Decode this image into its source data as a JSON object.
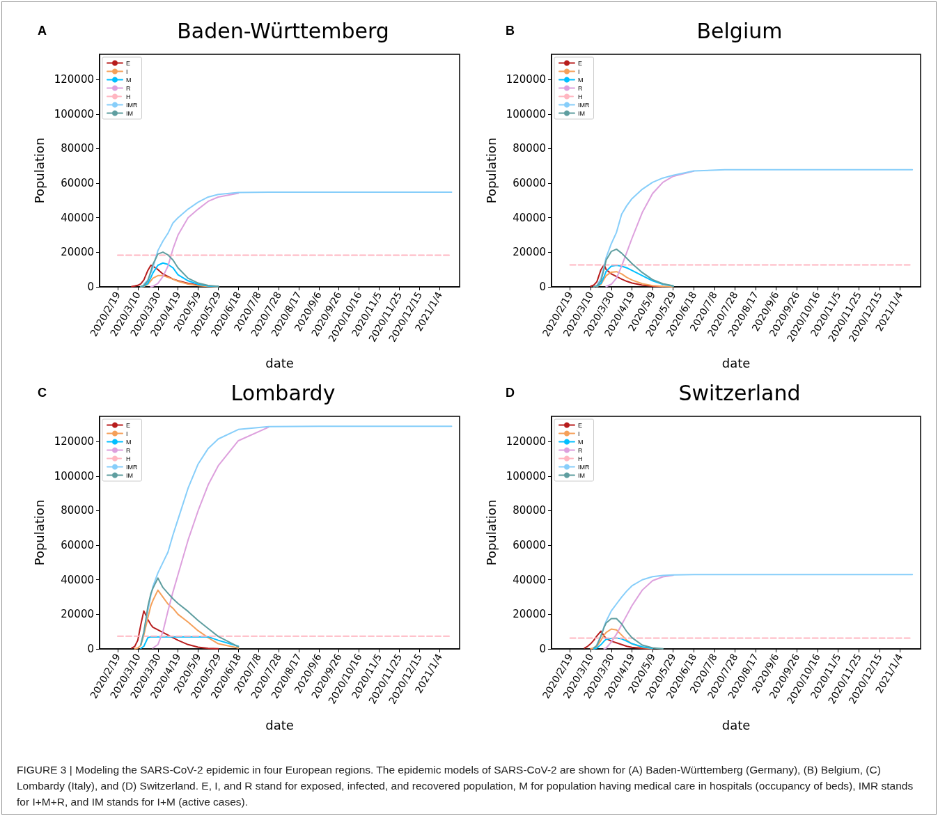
{
  "chart_data": [
    {
      "type": "line",
      "title": "Baden-Württemberg",
      "xlabel": "date",
      "ylabel": "Population",
      "annotations": [
        "A",
        "FIGURE 3 | Modeling the SARS-CoV-2 epidemic in four European regions. The epidemic models of SARS-CoV-2 are shown for (A) Baden-Württemberg (Germany), (B) Belgium, (C) Lombardy (Italy), and (D) Switzerland. E, I, and R stand for exposed, infected, and recovered population, M for population having medical care in hospitals (occupancy of beds), IMR stands for I+M+R, and IM stands for I+M (active cases)."
      ],
      "x": [
        "2020-02-19",
        "2020-02-24",
        "2020-02-29",
        "2020-03-04",
        "2020-03-07",
        "2020-03-10",
        "2020-03-13",
        "2020-03-16",
        "2020-03-20",
        "2020-03-23",
        "2020-03-25",
        "2020-03-30",
        "2020-04-04",
        "2020-04-09",
        "2020-04-14",
        "2020-04-19",
        "2020-04-29",
        "2020-05-09",
        "2020-05-19",
        "2020-05-29",
        "2020-06-18",
        "2020-07-18",
        "2020-09-06",
        "2020-10-26",
        "2020-12-15",
        "2021-01-16"
      ],
      "xlim": [
        "2020-02-01",
        "2021-01-24"
      ],
      "xticks": [
        {
          "value": "2020-02-19",
          "label": "2020/2/19"
        },
        {
          "value": "2020-03-10",
          "label": "2020/3/10"
        },
        {
          "value": "2020-03-30",
          "label": "2020/3/30"
        },
        {
          "value": "2020-04-19",
          "label": "2020/4/19"
        },
        {
          "value": "2020-05-09",
          "label": "2020/5/9"
        },
        {
          "value": "2020-05-29",
          "label": "2020/5/29"
        },
        {
          "value": "2020-06-18",
          "label": "2020/6/18"
        },
        {
          "value": "2020-07-08",
          "label": "2020/7/8"
        },
        {
          "value": "2020-07-28",
          "label": "2020/7/28"
        },
        {
          "value": "2020-08-17",
          "label": "2020/8/17"
        },
        {
          "value": "2020-09-06",
          "label": "2020/9/6"
        },
        {
          "value": "2020-09-26",
          "label": "2020/9/26"
        },
        {
          "value": "2020-10-16",
          "label": "2020/10/16"
        },
        {
          "value": "2020-11-05",
          "label": "2020/11/5"
        },
        {
          "value": "2020-11-25",
          "label": "2020/11/25"
        },
        {
          "value": "2020-12-15",
          "label": "2020/12/15"
        },
        {
          "value": "2021-01-04",
          "label": "2021/1/4"
        }
      ],
      "ylim": [
        0,
        134600
      ],
      "yticks": [
        0,
        20000,
        40000,
        60000,
        80000,
        100000,
        120000
      ],
      "legend": "top left",
      "marker": "none",
      "line_style": "solid",
      "series": [
        {
          "name": "E",
          "color": "#b71c1c",
          "values": [
            null,
            null,
            null,
            200,
            500,
            900,
            1800,
            4000,
            9500,
            12500,
            12000,
            10000,
            7500,
            6000,
            4500,
            3500,
            2000,
            1000,
            500,
            200,
            null,
            null,
            null,
            null,
            null,
            null
          ]
        },
        {
          "name": "I",
          "color": "#f5a05a",
          "values": [
            null,
            null,
            null,
            null,
            null,
            null,
            100,
            300,
            1500,
            3500,
            5000,
            6500,
            6500,
            5500,
            4500,
            3200,
            1600,
            700,
            300,
            100,
            null,
            null,
            null,
            null,
            null,
            null
          ]
        },
        {
          "name": "M",
          "color": "#00bfff",
          "values": [
            null,
            null,
            null,
            null,
            null,
            null,
            100,
            500,
            2000,
            5400,
            8000,
            12500,
            13800,
            13000,
            11000,
            7000,
            3500,
            1500,
            500,
            200,
            null,
            null,
            null,
            null,
            null,
            null
          ]
        },
        {
          "name": "R",
          "color": "#dda0dd",
          "values": [
            null,
            null,
            null,
            null,
            null,
            null,
            null,
            null,
            null,
            100,
            300,
            2000,
            6000,
            12000,
            22000,
            30000,
            40000,
            45000,
            49500,
            52000,
            54200,
            null,
            null,
            null,
            null,
            null
          ]
        },
        {
          "name": "H",
          "color": "#ffb6c1",
          "line_style": "dashed",
          "values": [
            18300,
            18300,
            18300,
            18300,
            18300,
            18300,
            18300,
            18300,
            18300,
            18300,
            18300,
            18300,
            18300,
            18300,
            18300,
            18300,
            18300,
            18300,
            18300,
            18300,
            18300,
            18300,
            18300,
            18300,
            18300,
            18300
          ]
        },
        {
          "name": "IMR",
          "color": "#87cefa",
          "values": [
            null,
            null,
            null,
            null,
            null,
            null,
            null,
            1500,
            4000,
            8000,
            11000,
            21000,
            26500,
            31000,
            37000,
            40000,
            45000,
            49000,
            52000,
            53500,
            54600,
            54800,
            54800,
            54800,
            54800,
            54800
          ]
        },
        {
          "name": "IM",
          "color": "#5f9ea0",
          "values": [
            null,
            null,
            null,
            null,
            null,
            null,
            200,
            800,
            3500,
            9000,
            13000,
            19000,
            20100,
            18500,
            15500,
            11000,
            5000,
            2200,
            800,
            300,
            null,
            null,
            null,
            null,
            null,
            null
          ]
        }
      ]
    },
    {
      "type": "line",
      "title": "Belgium",
      "xlabel": "date",
      "ylabel": "Population",
      "annotations": [
        "B"
      ],
      "x": [
        "2020-02-19",
        "2020-02-24",
        "2020-02-29",
        "2020-03-04",
        "2020-03-07",
        "2020-03-10",
        "2020-03-13",
        "2020-03-16",
        "2020-03-20",
        "2020-03-23",
        "2020-03-25",
        "2020-03-30",
        "2020-04-04",
        "2020-04-09",
        "2020-04-14",
        "2020-04-19",
        "2020-04-29",
        "2020-05-09",
        "2020-05-19",
        "2020-05-29",
        "2020-06-18",
        "2020-07-18",
        "2020-09-06",
        "2020-10-26",
        "2020-12-15",
        "2021-01-16"
      ],
      "xlim": [
        "2020-02-01",
        "2021-01-24"
      ],
      "xticks": [
        {
          "value": "2020-02-19",
          "label": "2020/2/19"
        },
        {
          "value": "2020-03-10",
          "label": "2020/3/10"
        },
        {
          "value": "2020-03-30",
          "label": "2020/3/30"
        },
        {
          "value": "2020-04-19",
          "label": "2020/4/19"
        },
        {
          "value": "2020-05-09",
          "label": "2020/5/9"
        },
        {
          "value": "2020-05-29",
          "label": "2020/5/29"
        },
        {
          "value": "2020-06-18",
          "label": "2020/6/18"
        },
        {
          "value": "2020-07-08",
          "label": "2020/7/8"
        },
        {
          "value": "2020-07-28",
          "label": "2020/7/28"
        },
        {
          "value": "2020-08-17",
          "label": "2020/8/17"
        },
        {
          "value": "2020-09-06",
          "label": "2020/9/6"
        },
        {
          "value": "2020-09-26",
          "label": "2020/9/26"
        },
        {
          "value": "2020-10-16",
          "label": "2020/10/16"
        },
        {
          "value": "2020-11-05",
          "label": "2020/11/5"
        },
        {
          "value": "2020-11-25",
          "label": "2020/11/25"
        },
        {
          "value": "2020-12-15",
          "label": "2020/12/15"
        },
        {
          "value": "2021-01-04",
          "label": "2021/1/4"
        }
      ],
      "ylim": [
        0,
        134600
      ],
      "yticks": [
        0,
        20000,
        40000,
        60000,
        80000,
        100000,
        120000
      ],
      "legend": "top left",
      "marker": "none",
      "line_style": "solid",
      "series": [
        {
          "name": "E",
          "color": "#b71c1c",
          "values": [
            null,
            null,
            null,
            null,
            null,
            300,
            1000,
            3000,
            10000,
            12800,
            10000,
            7500,
            6000,
            4500,
            3200,
            2200,
            1000,
            400,
            200,
            null,
            null,
            null,
            null,
            null,
            null,
            null
          ]
        },
        {
          "name": "I",
          "color": "#f5a05a",
          "values": [
            null,
            null,
            null,
            null,
            null,
            null,
            null,
            200,
            1500,
            4500,
            6500,
            8500,
            8800,
            7500,
            5500,
            4000,
            1800,
            700,
            300,
            100,
            null,
            null,
            null,
            null,
            null,
            null
          ]
        },
        {
          "name": "M",
          "color": "#00bfff",
          "values": [
            null,
            null,
            null,
            null,
            null,
            null,
            null,
            300,
            2000,
            6000,
            9000,
            12000,
            12500,
            12000,
            11000,
            9500,
            6500,
            3500,
            1500,
            500,
            null,
            null,
            null,
            null,
            null,
            null
          ]
        },
        {
          "name": "R",
          "color": "#dda0dd",
          "values": [
            null,
            null,
            null,
            null,
            null,
            null,
            null,
            null,
            null,
            null,
            200,
            1500,
            5000,
            12000,
            20000,
            28000,
            43000,
            54000,
            60500,
            64000,
            67000,
            null,
            null,
            null,
            null,
            null
          ]
        },
        {
          "name": "H",
          "color": "#ffb6c1",
          "line_style": "dashed",
          "values": [
            12700,
            12700,
            12700,
            12700,
            12700,
            12700,
            12700,
            12700,
            12700,
            12700,
            12700,
            12700,
            12700,
            12700,
            12700,
            12700,
            12700,
            12700,
            12700,
            12700,
            12700,
            12700,
            12700,
            12700,
            12700,
            12700
          ]
        },
        {
          "name": "IMR",
          "color": "#87cefa",
          "values": [
            null,
            null,
            null,
            null,
            null,
            null,
            null,
            700,
            5000,
            12000,
            17000,
            25000,
            31500,
            42000,
            47000,
            51000,
            56500,
            60500,
            63000,
            64600,
            67100,
            67800,
            67800,
            67800,
            67800,
            67800
          ]
        },
        {
          "name": "IM",
          "color": "#5f9ea0",
          "values": [
            null,
            null,
            null,
            null,
            null,
            null,
            100,
            600,
            3500,
            10500,
            15500,
            20500,
            21800,
            19500,
            16500,
            13500,
            8300,
            4200,
            1800,
            600,
            null,
            null,
            null,
            null,
            null,
            null
          ]
        }
      ]
    },
    {
      "type": "line",
      "title": "Lombardy",
      "xlabel": "date",
      "ylabel": "Population",
      "annotations": [
        "C"
      ],
      "x": [
        "2020-02-19",
        "2020-02-24",
        "2020-02-29",
        "2020-03-04",
        "2020-03-07",
        "2020-03-10",
        "2020-03-13",
        "2020-03-16",
        "2020-03-20",
        "2020-03-23",
        "2020-03-25",
        "2020-03-30",
        "2020-04-04",
        "2020-04-09",
        "2020-04-14",
        "2020-04-19",
        "2020-04-29",
        "2020-05-09",
        "2020-05-19",
        "2020-05-29",
        "2020-06-18",
        "2020-07-18",
        "2020-09-06",
        "2020-10-26",
        "2020-12-15",
        "2021-01-16"
      ],
      "xlim": [
        "2020-02-01",
        "2021-01-24"
      ],
      "xticks": [
        {
          "value": "2020-02-19",
          "label": "2020/2/19"
        },
        {
          "value": "2020-03-10",
          "label": "2020/3/10"
        },
        {
          "value": "2020-03-30",
          "label": "2020/3/30"
        },
        {
          "value": "2020-04-19",
          "label": "2020/4/19"
        },
        {
          "value": "2020-05-09",
          "label": "2020/5/9"
        },
        {
          "value": "2020-05-29",
          "label": "2020/5/29"
        },
        {
          "value": "2020-06-18",
          "label": "2020/6/18"
        },
        {
          "value": "2020-07-08",
          "label": "2020/7/8"
        },
        {
          "value": "2020-07-28",
          "label": "2020/7/28"
        },
        {
          "value": "2020-08-17",
          "label": "2020/8/17"
        },
        {
          "value": "2020-09-06",
          "label": "2020/9/6"
        },
        {
          "value": "2020-09-26",
          "label": "2020/9/26"
        },
        {
          "value": "2020-10-16",
          "label": "2020/10/16"
        },
        {
          "value": "2020-11-05",
          "label": "2020/11/5"
        },
        {
          "value": "2020-11-25",
          "label": "2020/11/25"
        },
        {
          "value": "2020-12-15",
          "label": "2020/12/15"
        },
        {
          "value": "2021-01-04",
          "label": "2021/1/4"
        }
      ],
      "ylim": [
        0,
        134600
      ],
      "yticks": [
        0,
        20000,
        40000,
        60000,
        80000,
        100000,
        120000
      ],
      "legend": "top left",
      "marker": "none",
      "line_style": "solid",
      "series": [
        {
          "name": "E",
          "color": "#b71c1c",
          "values": [
            null,
            null,
            null,
            500,
            1500,
            5000,
            14000,
            22000,
            17000,
            14000,
            12500,
            11000,
            9500,
            8000,
            6500,
            5000,
            2500,
            1000,
            300,
            100,
            null,
            null,
            null,
            null,
            null,
            null
          ]
        },
        {
          "name": "I",
          "color": "#f5a05a",
          "values": [
            null,
            null,
            null,
            null,
            100,
            500,
            2000,
            8000,
            18000,
            25000,
            28000,
            34000,
            30000,
            26000,
            23500,
            20000,
            15500,
            10500,
            6500,
            3000,
            500,
            null,
            null,
            null,
            null,
            null
          ]
        },
        {
          "name": "M",
          "color": "#00bfff",
          "values": [
            null,
            null,
            null,
            null,
            null,
            null,
            300,
            1500,
            6500,
            7000,
            7000,
            7000,
            7000,
            7000,
            7000,
            7000,
            7000,
            7000,
            7000,
            5000,
            1500,
            null,
            null,
            null,
            null,
            null
          ]
        },
        {
          "name": "R",
          "color": "#dda0dd",
          "values": [
            null,
            null,
            null,
            null,
            null,
            null,
            null,
            null,
            null,
            null,
            500,
            2500,
            10000,
            22000,
            33000,
            43000,
            63000,
            80000,
            95000,
            106000,
            120500,
            128300,
            null,
            null,
            null,
            null
          ]
        },
        {
          "name": "H",
          "color": "#ffb6c1",
          "line_style": "dashed",
          "values": [
            7400,
            7400,
            7400,
            7400,
            7400,
            7400,
            7400,
            7400,
            7400,
            7400,
            7400,
            7400,
            7400,
            7400,
            7400,
            7400,
            7400,
            7400,
            7400,
            7400,
            7400,
            7400,
            7400,
            7400,
            7400,
            7400
          ]
        },
        {
          "name": "IMR",
          "color": "#87cefa",
          "values": [
            null,
            null,
            null,
            null,
            null,
            null,
            2500,
            10000,
            22000,
            31000,
            36000,
            44000,
            50000,
            56000,
            66000,
            75000,
            93000,
            107000,
            116000,
            121500,
            127000,
            128700,
            128900,
            128900,
            128900,
            128900
          ]
        },
        {
          "name": "IM",
          "color": "#5f9ea0",
          "values": [
            null,
            null,
            null,
            null,
            null,
            null,
            2300,
            9500,
            24500,
            32000,
            35000,
            41000,
            35500,
            32200,
            29000,
            26300,
            21700,
            16400,
            11800,
            7200,
            1300,
            null,
            null,
            null,
            null,
            null
          ]
        }
      ]
    },
    {
      "type": "line",
      "title": "Switzerland",
      "xlabel": "date",
      "ylabel": "Population",
      "annotations": [
        "D"
      ],
      "x": [
        "2020-02-19",
        "2020-02-24",
        "2020-02-29",
        "2020-03-04",
        "2020-03-07",
        "2020-03-10",
        "2020-03-13",
        "2020-03-16",
        "2020-03-20",
        "2020-03-23",
        "2020-03-25",
        "2020-03-30",
        "2020-04-04",
        "2020-04-09",
        "2020-04-14",
        "2020-04-19",
        "2020-04-29",
        "2020-05-09",
        "2020-05-19",
        "2020-05-29",
        "2020-06-18",
        "2020-07-18",
        "2020-09-06",
        "2020-10-26",
        "2020-12-15",
        "2021-01-16"
      ],
      "xlim": [
        "2020-02-01",
        "2021-01-24"
      ],
      "xticks": [
        {
          "value": "2020-02-19",
          "label": "2020/2/19"
        },
        {
          "value": "2020-03-10",
          "label": "2020/3/10"
        },
        {
          "value": "2020-03-30",
          "label": "2020/3/30"
        },
        {
          "value": "2020-04-19",
          "label": "2020/4/19"
        },
        {
          "value": "2020-05-09",
          "label": "2020/5/9"
        },
        {
          "value": "2020-05-29",
          "label": "2020/5/29"
        },
        {
          "value": "2020-06-18",
          "label": "2020/6/18"
        },
        {
          "value": "2020-07-08",
          "label": "2020/7/8"
        },
        {
          "value": "2020-07-28",
          "label": "2020/7/28"
        },
        {
          "value": "2020-08-17",
          "label": "2020/8/17"
        },
        {
          "value": "2020-09-06",
          "label": "2020/9/6"
        },
        {
          "value": "2020-09-26",
          "label": "2020/9/26"
        },
        {
          "value": "2020-10-16",
          "label": "2020/10/16"
        },
        {
          "value": "2020-11-05",
          "label": "2020/11/5"
        },
        {
          "value": "2020-11-25",
          "label": "2020/11/25"
        },
        {
          "value": "2020-12-15",
          "label": "2020/12/15"
        },
        {
          "value": "2021-01-04",
          "label": "2021/1/4"
        }
      ],
      "ylim": [
        0,
        134600
      ],
      "yticks": [
        0,
        20000,
        40000,
        60000,
        80000,
        100000,
        120000
      ],
      "legend": "top left",
      "marker": "none",
      "line_style": "solid",
      "series": [
        {
          "name": "E",
          "color": "#b71c1c",
          "values": [
            null,
            null,
            null,
            500,
            1500,
            3000,
            5000,
            7500,
            10300,
            7500,
            6000,
            4500,
            3500,
            2500,
            1500,
            900,
            300,
            100,
            null,
            null,
            null,
            null,
            null,
            null,
            null,
            null
          ]
        },
        {
          "name": "I",
          "color": "#f5a05a",
          "values": [
            null,
            null,
            null,
            null,
            null,
            100,
            500,
            1500,
            5000,
            8000,
            9500,
            11500,
            11000,
            8000,
            5000,
            3000,
            800,
            200,
            null,
            null,
            null,
            null,
            null,
            null,
            null,
            null
          ]
        },
        {
          "name": "M",
          "color": "#00bfff",
          "values": [
            null,
            null,
            null,
            null,
            null,
            null,
            100,
            500,
            2500,
            4500,
            5500,
            6000,
            6200,
            5800,
            4500,
            3000,
            1200,
            300,
            null,
            null,
            null,
            null,
            null,
            null,
            null,
            null
          ]
        },
        {
          "name": "R",
          "color": "#dda0dd",
          "values": [
            null,
            null,
            null,
            null,
            null,
            null,
            null,
            null,
            null,
            100,
            500,
            4000,
            8500,
            14000,
            19500,
            25000,
            34000,
            39500,
            41700,
            42600,
            null,
            null,
            null,
            null,
            null,
            null
          ]
        },
        {
          "name": "H",
          "color": "#ffb6c1",
          "line_style": "dashed",
          "values": [
            6200,
            6200,
            6200,
            6200,
            6200,
            6200,
            6200,
            6200,
            6200,
            6200,
            6200,
            6200,
            6200,
            6200,
            6200,
            6200,
            6200,
            6200,
            6200,
            6200,
            6200,
            6200,
            6200,
            6200,
            6200,
            6200
          ]
        },
        {
          "name": "IMR",
          "color": "#87cefa",
          "values": [
            null,
            null,
            null,
            null,
            null,
            null,
            null,
            2500,
            7500,
            13000,
            16000,
            22000,
            26000,
            30000,
            33500,
            36500,
            40000,
            41800,
            42500,
            42800,
            43000,
            43000,
            43000,
            43000,
            43000,
            43000
          ]
        },
        {
          "name": "IM",
          "color": "#5f9ea0",
          "values": [
            null,
            null,
            null,
            null,
            null,
            null,
            600,
            2000,
            7500,
            12500,
            15000,
            17500,
            17500,
            14500,
            10000,
            6500,
            2200,
            600,
            100,
            null,
            null,
            null,
            null,
            null,
            null,
            null
          ]
        }
      ]
    }
  ]
}
